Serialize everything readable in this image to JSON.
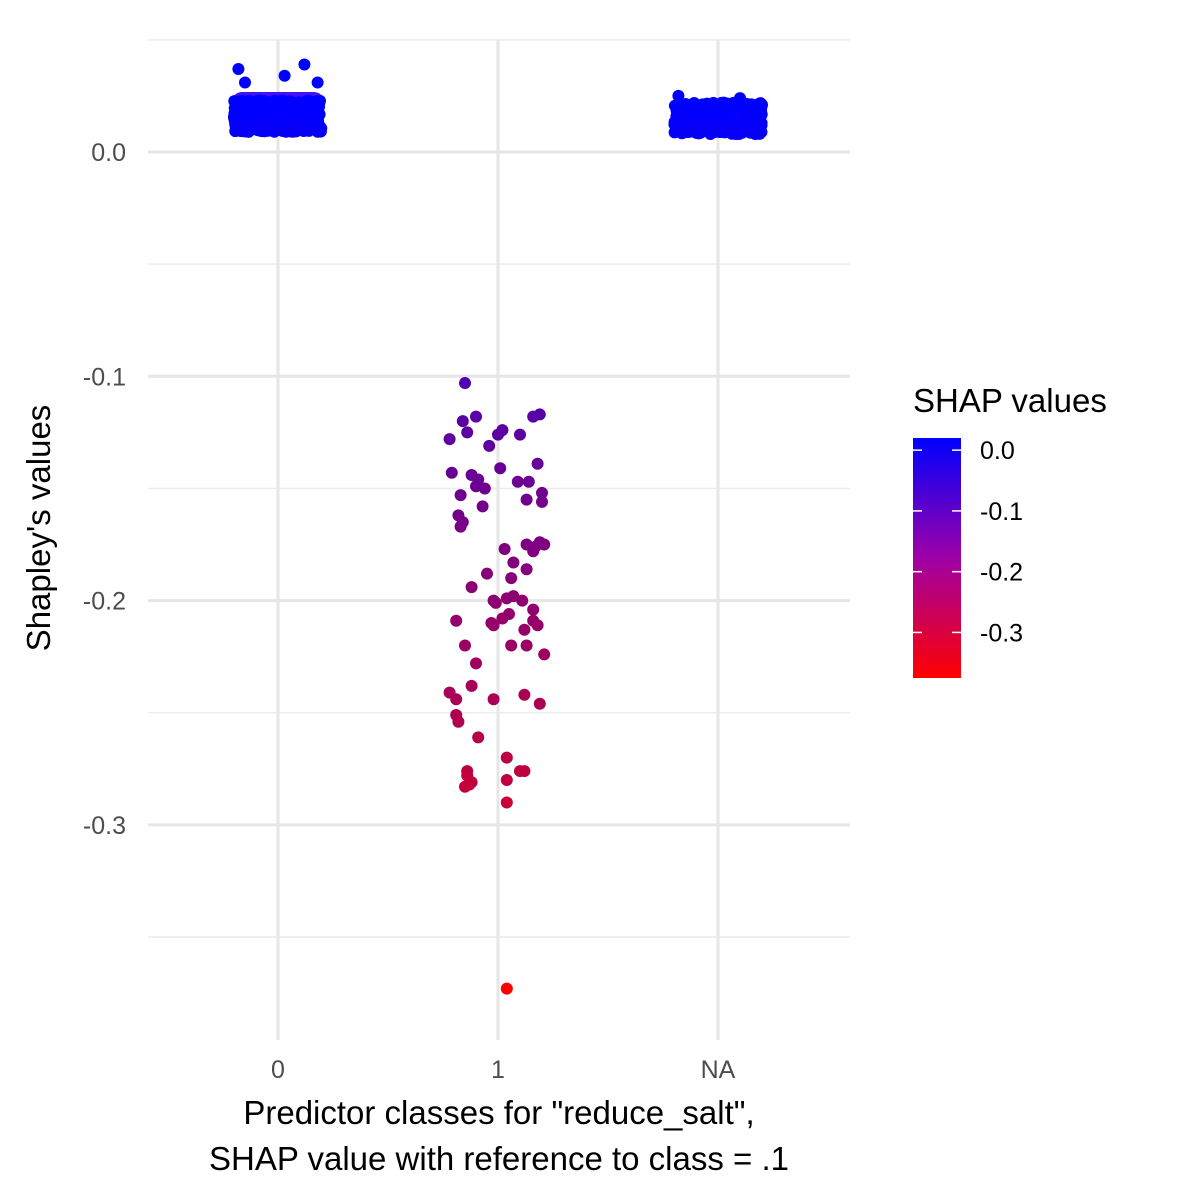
{
  "chart_data": {
    "type": "scatter",
    "title": "",
    "xlabel_lines": [
      "Predictor classes for \"reduce_salt\",",
      "SHAP value with reference to class = .1"
    ],
    "ylabel": "Shapley's values",
    "categories": [
      "0",
      "1",
      "NA"
    ],
    "y_ticks": [
      "0.0",
      "-0.1",
      "-0.2",
      "-0.3"
    ],
    "y_tick_values": [
      0.0,
      -0.1,
      -0.2,
      -0.3
    ],
    "ylim": [
      -0.385,
      0.05
    ],
    "grid": true,
    "legend": {
      "title": "SHAP values",
      "type": "colorbar",
      "placement": "right",
      "low_color": "#ff0000",
      "high_color": "#0000ff",
      "min": -0.375,
      "max": 0.02,
      "ticks": [
        "0.0",
        "-0.1",
        "-0.2",
        "-0.3"
      ],
      "tick_values": [
        0.0,
        -0.1,
        -0.2,
        -0.3
      ]
    },
    "series": [
      {
        "category": "1",
        "points": [
          [
            -0.15,
            -0.103
          ],
          [
            0.16,
            -0.118
          ],
          [
            0.19,
            -0.117
          ],
          [
            -0.1,
            -0.118
          ],
          [
            -0.16,
            -0.12
          ],
          [
            -0.14,
            -0.125
          ],
          [
            0.02,
            -0.124
          ],
          [
            0.0,
            -0.126
          ],
          [
            0.1,
            -0.126
          ],
          [
            -0.22,
            -0.128
          ],
          [
            -0.04,
            -0.131
          ],
          [
            0.18,
            -0.139
          ],
          [
            0.01,
            -0.141
          ],
          [
            -0.21,
            -0.143
          ],
          [
            -0.12,
            -0.144
          ],
          [
            -0.09,
            -0.146
          ],
          [
            0.09,
            -0.147
          ],
          [
            0.14,
            -0.147
          ],
          [
            -0.06,
            -0.15
          ],
          [
            -0.1,
            -0.149
          ],
          [
            0.2,
            -0.152
          ],
          [
            -0.17,
            -0.153
          ],
          [
            0.13,
            -0.155
          ],
          [
            0.2,
            -0.156
          ],
          [
            -0.07,
            -0.158
          ],
          [
            -0.18,
            -0.162
          ],
          [
            -0.16,
            -0.165
          ],
          [
            -0.17,
            -0.167
          ],
          [
            0.19,
            -0.174
          ],
          [
            0.13,
            -0.175
          ],
          [
            0.17,
            -0.176
          ],
          [
            0.21,
            -0.175
          ],
          [
            0.16,
            -0.178
          ],
          [
            0.03,
            -0.177
          ],
          [
            0.07,
            -0.183
          ],
          [
            0.13,
            -0.186
          ],
          [
            -0.05,
            -0.188
          ],
          [
            0.06,
            -0.19
          ],
          [
            -0.12,
            -0.194
          ],
          [
            0.04,
            -0.199
          ],
          [
            0.07,
            -0.198
          ],
          [
            -0.02,
            -0.2
          ],
          [
            0.11,
            -0.2
          ],
          [
            -0.01,
            -0.201
          ],
          [
            0.16,
            -0.204
          ],
          [
            0.05,
            -0.206
          ],
          [
            0.02,
            -0.208
          ],
          [
            -0.19,
            -0.209
          ],
          [
            -0.03,
            -0.21
          ],
          [
            -0.02,
            -0.211
          ],
          [
            0.16,
            -0.209
          ],
          [
            0.18,
            -0.211
          ],
          [
            0.12,
            -0.213
          ],
          [
            0.06,
            -0.22
          ],
          [
            -0.15,
            -0.22
          ],
          [
            0.13,
            -0.22
          ],
          [
            0.21,
            -0.224
          ],
          [
            -0.1,
            -0.228
          ],
          [
            -0.12,
            -0.238
          ],
          [
            -0.22,
            -0.241
          ],
          [
            0.12,
            -0.242
          ],
          [
            -0.02,
            -0.244
          ],
          [
            -0.19,
            -0.244
          ],
          [
            0.19,
            -0.246
          ],
          [
            -0.19,
            -0.251
          ],
          [
            -0.18,
            -0.254
          ],
          [
            -0.09,
            -0.261
          ],
          [
            0.04,
            -0.27
          ],
          [
            -0.14,
            -0.276
          ],
          [
            -0.14,
            -0.278
          ],
          [
            0.1,
            -0.276
          ],
          [
            0.12,
            -0.276
          ],
          [
            -0.12,
            -0.281
          ],
          [
            0.04,
            -0.28
          ],
          [
            -0.15,
            -0.283
          ],
          [
            -0.13,
            -0.282
          ],
          [
            0.04,
            -0.29
          ],
          [
            0.04,
            -0.373
          ]
        ]
      }
    ]
  }
}
